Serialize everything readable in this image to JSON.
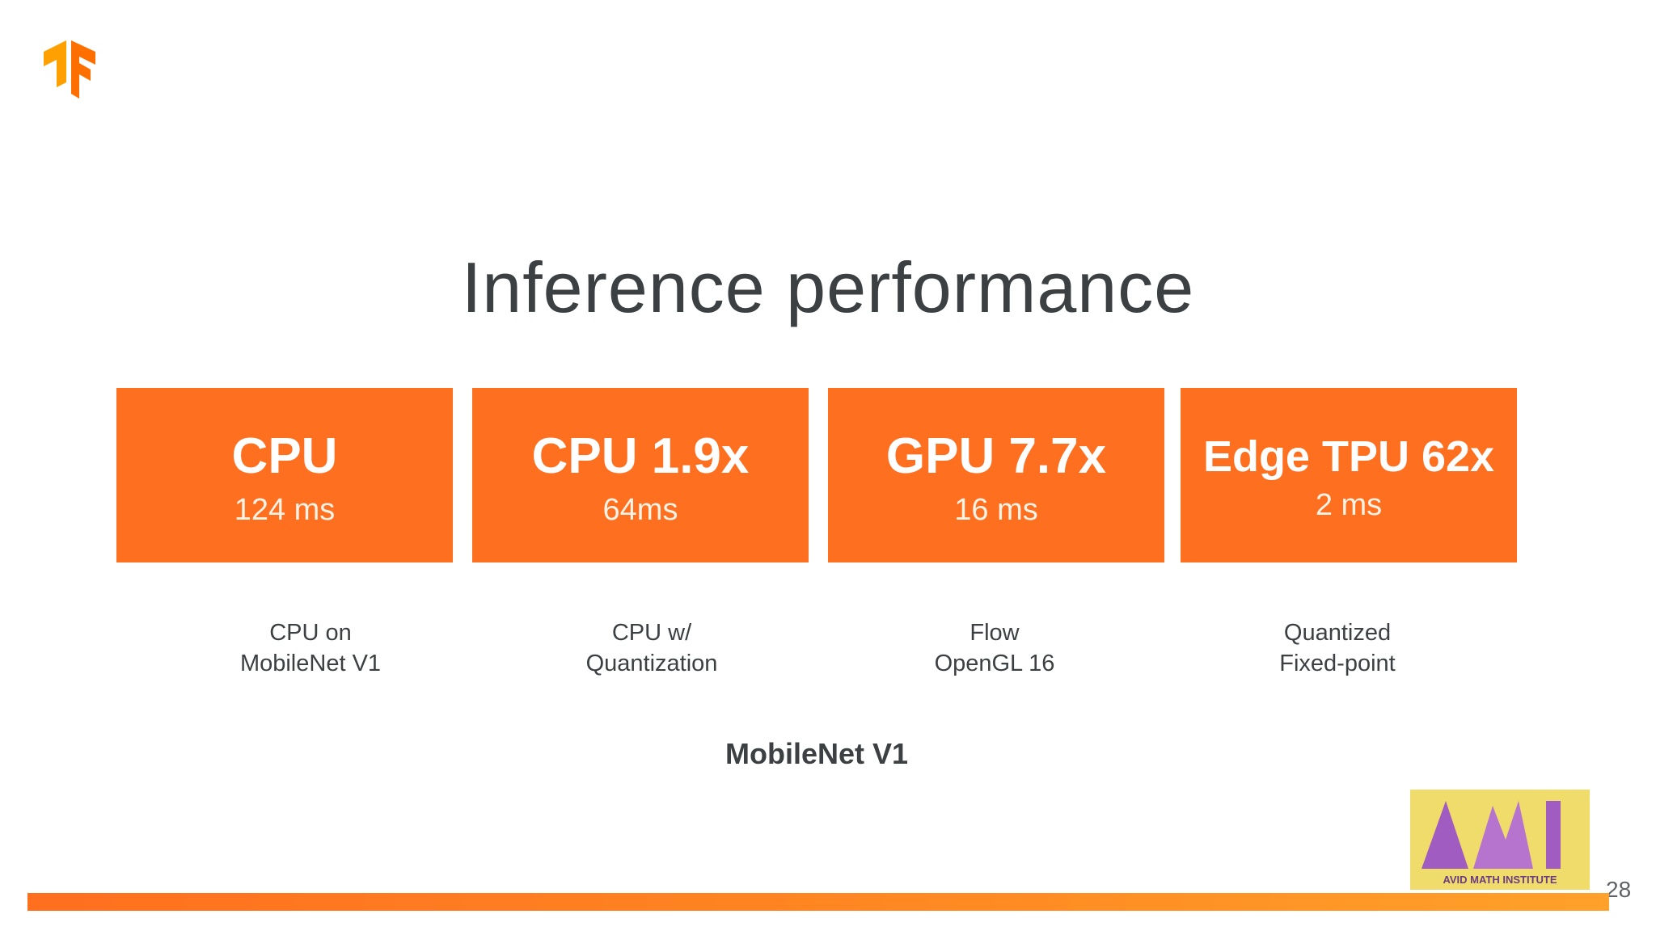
{
  "slide": {
    "title": "Inference performance",
    "subtitle": "MobileNet V1",
    "page_number": "28",
    "accent_color": "#ff6f20"
  },
  "logo": {
    "icon": "tensorflow-logo-icon",
    "color": "#ff8f00"
  },
  "cards": [
    {
      "primary": "CPU",
      "secondary": "124 ms"
    },
    {
      "primary": "CPU 1.9x",
      "secondary": "64ms"
    },
    {
      "primary": "GPU 7.7x",
      "secondary": "16 ms"
    },
    {
      "primary": "Edge TPU 62x",
      "secondary": "2 ms"
    }
  ],
  "captions": [
    {
      "line1": "CPU on",
      "line2": "MobileNet V1"
    },
    {
      "line1": "CPU w/",
      "line2": "Quantization"
    },
    {
      "line1": "Flow",
      "line2": "OpenGL 16"
    },
    {
      "line1": "Quantized",
      "line2": "Fixed-point"
    }
  ],
  "watermark": {
    "icon": "avid-math-institute-logo",
    "text": "AVID MATH INSTITUTE",
    "background": "#f0dc6a",
    "mark_color": "#a05cc0"
  }
}
